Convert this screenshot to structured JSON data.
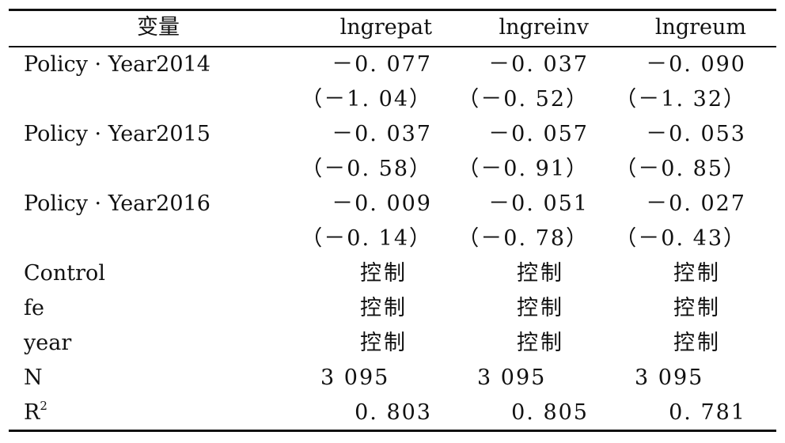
{
  "table": {
    "header": {
      "variable": "变量",
      "cols": [
        "lngrepat",
        "lngreinv",
        "lngreum"
      ]
    },
    "rows": [
      {
        "label": "Policy · Year2014",
        "values": [
          "－0. 077",
          "－0. 037",
          "－0. 090"
        ]
      },
      {
        "label": "",
        "values": [
          "（－1. 04）",
          "（－0. 52）",
          "（－1. 32）"
        ]
      },
      {
        "label": "Policy · Year2015",
        "values": [
          "－0. 037",
          "－0. 057",
          "－0. 053"
        ]
      },
      {
        "label": "",
        "values": [
          "（－0. 58）",
          "（－0. 91）",
          "（－0. 85）"
        ]
      },
      {
        "label": "Policy · Year2016",
        "values": [
          "－0. 009",
          "－0. 051",
          "－0. 027"
        ]
      },
      {
        "label": "",
        "values": [
          "（－0. 14）",
          "（－0. 78）",
          "（－0. 43）"
        ]
      },
      {
        "label": "Control",
        "values": [
          "控制",
          "控制",
          "控制"
        ]
      },
      {
        "label": "fe",
        "values": [
          "控制",
          "控制",
          "控制"
        ]
      },
      {
        "label": "year",
        "values": [
          "控制",
          "控制",
          "控制"
        ]
      },
      {
        "label": "N",
        "values": [
          "3 095",
          "3 095",
          "3 095"
        ]
      },
      {
        "label": "R",
        "label_sup": "2",
        "values": [
          "0. 803",
          "0. 805",
          "0. 781"
        ]
      }
    ]
  }
}
